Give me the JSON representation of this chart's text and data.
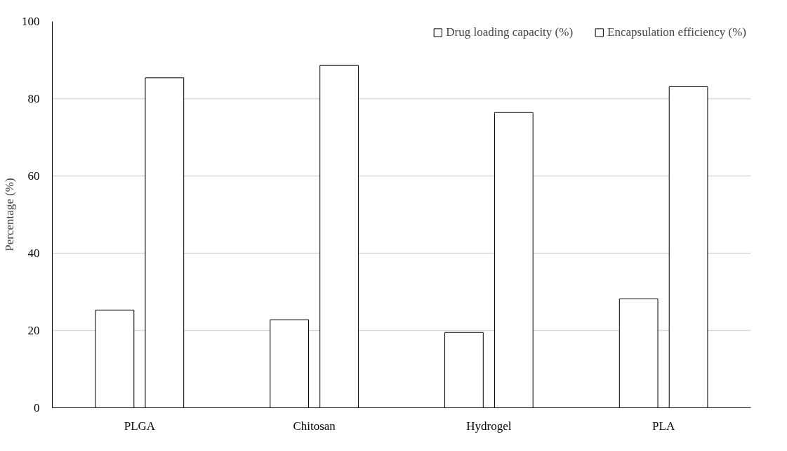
{
  "chart_data": {
    "type": "bar",
    "ylabel": "Percentage (%)",
    "categories": [
      "PLGA",
      "Chitosan",
      "Hydrogel",
      "PLA"
    ],
    "series": [
      {
        "name": "Drug loading capacity (%)",
        "color": "#ffffff",
        "values": [
          25.3,
          22.8,
          19.5,
          28.2
        ]
      },
      {
        "name": "Encapsulation efficiency (%)",
        "color": "#ffffff",
        "values": [
          85.4,
          88.6,
          76.4,
          83.1
        ]
      }
    ],
    "ylim": [
      0,
      100
    ],
    "yticks": [
      0,
      20,
      40,
      60,
      80,
      100
    ],
    "grid": "y",
    "legend": "top right"
  }
}
